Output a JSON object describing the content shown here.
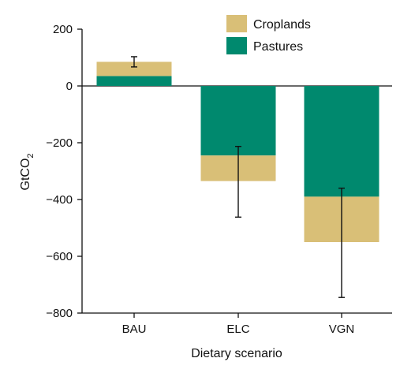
{
  "chart_data": {
    "type": "bar",
    "stacked": true,
    "categories": [
      "BAU",
      "ELC",
      "VGN"
    ],
    "series": [
      {
        "name": "Croplands",
        "color": "#d9bf77",
        "values": [
          50,
          -90,
          -160
        ]
      },
      {
        "name": "Pastures",
        "color": "#00896e",
        "values": [
          35,
          -245,
          -390
        ]
      }
    ],
    "totals": [
      85,
      -335,
      -550
    ],
    "error_bars": [
      {
        "category": "BAU",
        "low": 67,
        "high": 103
      },
      {
        "category": "ELC",
        "low": -462,
        "high": -213
      },
      {
        "category": "VGN",
        "low": -745,
        "high": -360
      }
    ],
    "xlabel": "Dietary scenario",
    "ylabel": "GtCO",
    "ylabel_subscript": "2",
    "ylim": [
      -800,
      200
    ],
    "yticks": [
      200,
      0,
      -200,
      -400,
      -600,
      -800
    ],
    "ytick_labels": [
      "200",
      "0",
      "−200",
      "−400",
      "−600",
      "−800"
    ],
    "legend_position": "top-center",
    "zero_line": true,
    "grid": false
  }
}
